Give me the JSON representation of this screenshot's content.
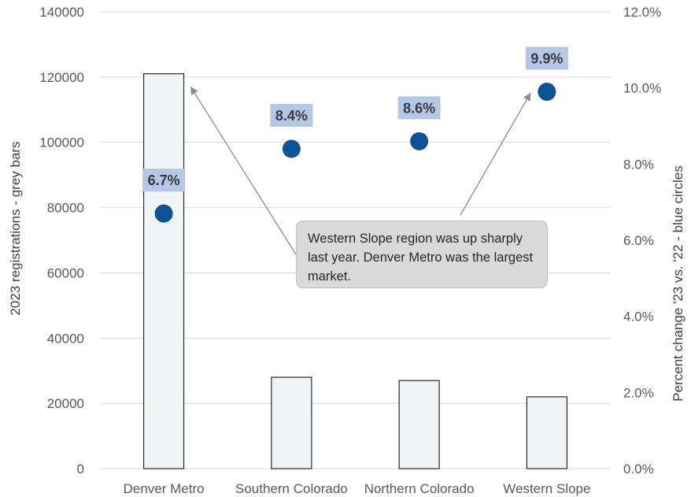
{
  "chart_data": {
    "type": "bar",
    "categories": [
      "Denver Metro",
      "Southern Colorado",
      "Northern Colorado",
      "Western Slope"
    ],
    "series": [
      {
        "kind": "bar",
        "axis": "left",
        "values": [
          121000,
          28000,
          27000,
          22000
        ]
      },
      {
        "kind": "scatter",
        "axis": "right",
        "values": [
          6.7,
          8.4,
          8.6,
          9.9
        ],
        "labels": [
          "6.7%",
          "8.4%",
          "8.6%",
          "9.9%"
        ]
      }
    ],
    "ylabel": "2023 registrations - grey bars",
    "y2label": "Percent change '23 vs. '22 - blue circles",
    "ylim": [
      0,
      140000
    ],
    "y2lim": [
      0,
      12
    ],
    "yticks": [
      "0",
      "20000",
      "40000",
      "60000",
      "80000",
      "100000",
      "120000",
      "140000"
    ],
    "y2ticks": [
      "0.0%",
      "2.0%",
      "4.0%",
      "6.0%",
      "8.0%",
      "10.0%",
      "12.0%"
    ],
    "grid": true,
    "annotation": "Western Slope region was up sharply last year. Denver Metro was the largest market.",
    "colors": {
      "bar_fill": "#f2f3f5",
      "bar_stroke": "#000000",
      "circle": "#0b5394",
      "label_bg": "#b4c7e7",
      "grid": "#d9d9d9",
      "callout_bg": "#d9d9d9",
      "arrow": "#8c8c8c"
    }
  }
}
